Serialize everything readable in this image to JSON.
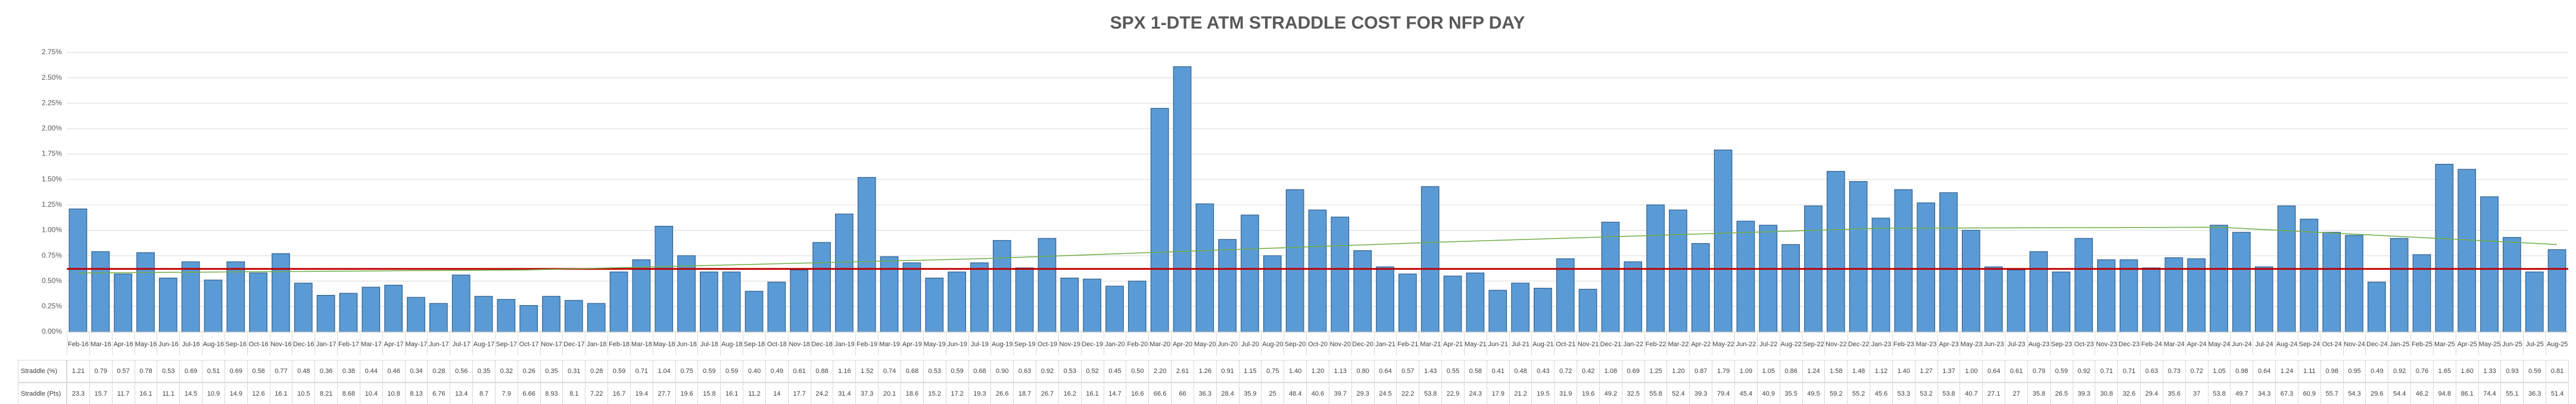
{
  "chart_data": {
    "type": "bar",
    "title": "SPX 1-DTE ATM STRADDLE COST FOR NFP DAY",
    "categories": [
      "Feb-16",
      "Mar-16",
      "Apr-16",
      "May-16",
      "Jun-16",
      "Jul-16",
      "Aug-16",
      "Sep-16",
      "Oct-16",
      "Nov-16",
      "Dec-16",
      "Jan-17",
      "Feb-17",
      "Mar-17",
      "Apr-17",
      "May-17",
      "Jun-17",
      "Jul-17",
      "Aug-17",
      "Sep-17",
      "Oct-17",
      "Nov-17",
      "Dec-17",
      "Jan-18",
      "Feb-18",
      "Mar-18",
      "May-18",
      "Jun-18",
      "Jul-18",
      "Aug-18",
      "Sep-18",
      "Oct-18",
      "Nov-18",
      "Dec-18",
      "Jan-19",
      "Feb-19",
      "Mar-19",
      "Apr-19",
      "May-19",
      "Jun-19",
      "Jul-19",
      "Aug-19",
      "Sep-19",
      "Oct-19",
      "Nov-19",
      "Dec-19",
      "Jan-20",
      "Feb-20",
      "Mar-20",
      "Apr-20",
      "May-20",
      "Jun-20",
      "Jul-20",
      "Aug-20",
      "Sep-20",
      "Oct-20",
      "Nov-20",
      "Dec-20",
      "Jan-21",
      "Feb-21",
      "Mar-21",
      "Apr-21",
      "May-21",
      "Jun-21",
      "Jul-21",
      "Aug-21",
      "Oct-21",
      "Nov-21",
      "Dec-21",
      "Jan-22",
      "Feb-22",
      "Mar-22",
      "Apr-22",
      "May-22",
      "Jun-22",
      "Jul-22",
      "Aug-22",
      "Sep-22",
      "Nov-22",
      "Dec-22",
      "Jan-23",
      "Feb-23",
      "Mar-23",
      "Apr-23",
      "May-23",
      "Jun-23",
      "Jul-23",
      "Aug-23",
      "Sep-23",
      "Oct-23",
      "Nov-23",
      "Dec-23",
      "Feb-24",
      "Mar-24",
      "Apr-24",
      "May-24",
      "Jun-24",
      "Jul-24",
      "Aug-24",
      "Sep-24",
      "Oct-24",
      "Nov-24",
      "Dec-24",
      "Jan-25",
      "Feb-25",
      "Mar-25",
      "Apr-25",
      "May-25",
      "Jun-25",
      "Jul-25",
      "Aug-25"
    ],
    "series": [
      {
        "name": "Straddle (%)",
        "color": "#5b9bd5",
        "values": [
          1.21,
          0.79,
          0.57,
          0.78,
          0.53,
          0.69,
          0.51,
          0.69,
          0.58,
          0.77,
          0.48,
          0.36,
          0.38,
          0.44,
          0.46,
          0.34,
          0.28,
          0.56,
          0.35,
          0.32,
          0.26,
          0.35,
          0.31,
          0.28,
          0.59,
          0.71,
          1.04,
          0.75,
          0.59,
          0.59,
          0.4,
          0.49,
          0.61,
          0.88,
          1.16,
          1.52,
          0.74,
          0.68,
          0.53,
          0.59,
          0.68,
          0.9,
          0.63,
          0.92,
          0.53,
          0.52,
          0.45,
          0.5,
          2.2,
          2.61,
          1.26,
          0.91,
          1.15,
          0.75,
          1.4,
          1.2,
          1.13,
          0.8,
          0.64,
          0.57,
          1.43,
          0.55,
          0.58,
          0.41,
          0.48,
          0.43,
          0.72,
          0.42,
          1.08,
          0.69,
          1.25,
          1.2,
          0.87,
          1.79,
          1.09,
          1.05,
          0.86,
          1.24,
          1.58,
          1.48,
          1.12,
          1.4,
          1.27,
          1.37,
          1.0,
          0.64,
          0.61,
          0.79,
          0.59,
          0.92,
          0.71,
          0.71,
          0.63,
          0.73,
          0.72,
          1.05,
          0.98,
          0.64,
          1.24,
          1.11,
          0.98,
          0.95,
          0.49,
          0.92,
          0.76,
          1.65,
          1.6,
          1.33,
          0.93,
          0.59,
          0.81
        ],
        "value_labels": [
          "1.21",
          "0.79",
          "0.57",
          "0.78",
          "0.53",
          "0.69",
          "0.51",
          "0.69",
          "0.58",
          "0.77",
          "0.48",
          "0.36",
          "0.38",
          "0.44",
          "0.46",
          "0.34",
          "0.28",
          "0.56",
          "0.35",
          "0.32",
          "0.26",
          "0.35",
          "0.31",
          "0.28",
          "0.59",
          "0.71",
          "1.04",
          "0.75",
          "0.59",
          "0.59",
          "0.40",
          "0.49",
          "0.61",
          "0.88",
          "1.16",
          "1.52",
          "0.74",
          "0.68",
          "0.53",
          "0.59",
          "0.68",
          "0.90",
          "0.63",
          "0.92",
          "0.53",
          "0.52",
          "0.45",
          "0.50",
          "2.20",
          "2.61",
          "1.26",
          "0.91",
          "1.15",
          "0.75",
          "1.40",
          "1.20",
          "1.13",
          "0.80",
          "0.64",
          "0.57",
          "1.43",
          "0.55",
          "0.58",
          "0.41",
          "0.48",
          "0.43",
          "0.72",
          "0.42",
          "1.08",
          "0.69",
          "1.25",
          "1.20",
          "0.87",
          "1.79",
          "1.09",
          "1.05",
          "0.86",
          "1.24",
          "1.58",
          "1.48",
          "1.12",
          "1.40",
          "1.27",
          "1.37",
          "1.00",
          "0.64",
          "0.61",
          "0.79",
          "0.59",
          "0.92",
          "0.71",
          "0.71",
          "0.63",
          "0.73",
          "0.72",
          "1.05",
          "0.98",
          "0.64",
          "1.24",
          "1.11",
          "0.98",
          "0.95",
          "0.49",
          "0.92",
          "0.76",
          "1.65",
          "1.60",
          "1.33",
          "0.93",
          "0.59",
          "0.81"
        ]
      }
    ],
    "table_rows": [
      {
        "name": "Straddle (Pts)",
        "values": [
          23.3,
          15.7,
          11.7,
          16.1,
          11.1,
          14.5,
          10.9,
          14.9,
          12.6,
          16.1,
          10.5,
          8.21,
          8.68,
          10.4,
          10.8,
          8.13,
          6.76,
          13.4,
          8.7,
          7.9,
          6.66,
          8.93,
          8.1,
          7.22,
          16.7,
          19.4,
          27.7,
          19.6,
          15.8,
          16.1,
          11.2,
          14,
          17.7,
          24.2,
          31.4,
          37.3,
          20.1,
          18.6,
          15.2,
          17.2,
          19.3,
          26.6,
          18.7,
          26.7,
          16.2,
          16.1,
          14.7,
          16.6,
          66.6,
          66,
          36.3,
          28.4,
          35.9,
          25,
          48.4,
          40.6,
          39.7,
          29.3,
          24.5,
          22.2,
          53.8,
          22.9,
          24.3,
          17.9,
          21.2,
          19.5,
          31.9,
          19.6,
          49.2,
          32.5,
          55.8,
          52.4,
          39.3,
          79.4,
          45.4,
          40.9,
          35.5,
          49.5,
          59.2,
          55.2,
          45.6,
          53.3,
          53.2,
          53.8,
          40.7,
          27.1,
          27,
          35.8,
          26.5,
          39.3,
          30.8,
          32.6,
          29.4,
          35.6,
          37,
          53.8,
          49.7,
          34.3,
          67.3,
          60.9,
          55.7,
          54.3,
          29.6,
          54.4,
          46.2,
          94.8,
          86.1,
          74.4,
          55.1,
          36.3,
          51.4
        ]
      }
    ],
    "reference_line": {
      "value": 0.62,
      "color": "#c00000"
    },
    "trend": {
      "color": "#70ad47",
      "x": [
        0,
        20,
        40,
        60,
        80,
        95,
        110
      ],
      "values": [
        0.58,
        0.61,
        0.72,
        0.88,
        1.02,
        1.03,
        0.86
      ]
    },
    "ylim": [
      0,
      2.75
    ],
    "yticks": [
      {
        "value": 0,
        "label": "0.00%"
      },
      {
        "value": 0.25,
        "label": "0.25%"
      },
      {
        "value": 0.5,
        "label": "0.50%"
      },
      {
        "value": 0.75,
        "label": "0.75%"
      },
      {
        "value": 1,
        "label": "1.00%"
      },
      {
        "value": 1.25,
        "label": "1.25%"
      },
      {
        "value": 1.5,
        "label": "1.50%"
      },
      {
        "value": 1.75,
        "label": "1.75%"
      },
      {
        "value": 2,
        "label": "2.00%"
      },
      {
        "value": 2.25,
        "label": "2.25%"
      },
      {
        "value": 2.5,
        "label": "2.50%"
      },
      {
        "value": 2.75,
        "label": "2.75%"
      }
    ],
    "grid": true
  }
}
